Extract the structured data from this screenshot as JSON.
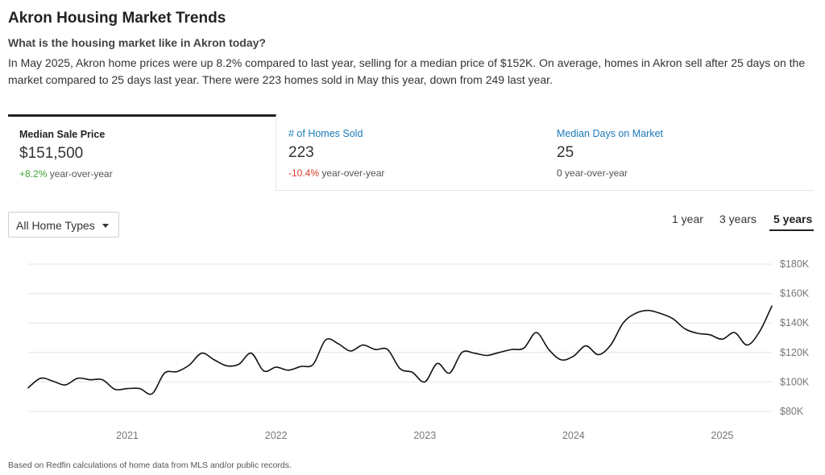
{
  "header": {
    "title": "Akron Housing Market Trends",
    "subtitle": "What is the housing market like in Akron today?",
    "description": "In May 2025, Akron home prices were up 8.2% compared to last year, selling for a median price of $152K. On average, homes in Akron sell after 25 days on the market compared to 25 days last year. There were 223 homes sold in May this year, down from 249 last year."
  },
  "tabs": [
    {
      "label": "Median Sale Price",
      "value": "$151,500",
      "change": "+8.2%",
      "change_suffix": " year-over-year",
      "active": true
    },
    {
      "label": "# of Homes Sold",
      "value": "223",
      "change": "-10.4%",
      "change_suffix": " year-over-year",
      "active": false
    },
    {
      "label": "Median Days on Market",
      "value": "25",
      "change": "0",
      "change_suffix": " year-over-year",
      "active": false
    }
  ],
  "filter": {
    "selected": "All Home Types"
  },
  "ranges": [
    {
      "label": "1 year",
      "active": false
    },
    {
      "label": "3 years",
      "active": false
    },
    {
      "label": "5 years",
      "active": true
    }
  ],
  "colors": {
    "positive": "#3fa535",
    "negative": "#d93a26",
    "tab_link": "#1a7ab8",
    "line": "#111111"
  },
  "chart_data": {
    "type": "line",
    "title": "",
    "xlabel": "",
    "ylabel": "",
    "ylim": [
      80000,
      180000
    ],
    "y_ticks": [
      80000,
      100000,
      120000,
      140000,
      160000,
      180000
    ],
    "y_tick_labels": [
      "$80K",
      "$100K",
      "$120K",
      "$140K",
      "$160K",
      "$180K"
    ],
    "x_tick_labels": [
      "2021",
      "2022",
      "2023",
      "2024",
      "2025"
    ],
    "x_tick_dates": [
      "2021-01",
      "2022-01",
      "2023-01",
      "2024-01",
      "2025-01"
    ],
    "x_range": [
      "2020-05",
      "2025-05"
    ],
    "grid": true,
    "series": [
      {
        "x": [
          "2020-05",
          "2020-06",
          "2020-07",
          "2020-08",
          "2020-09",
          "2020-10",
          "2020-11",
          "2020-12",
          "2021-01",
          "2021-02",
          "2021-03",
          "2021-04",
          "2021-05",
          "2021-06",
          "2021-07",
          "2021-08",
          "2021-09",
          "2021-10",
          "2021-11",
          "2021-12",
          "2022-01",
          "2022-02",
          "2022-03",
          "2022-04",
          "2022-05",
          "2022-06",
          "2022-07",
          "2022-08",
          "2022-09",
          "2022-10",
          "2022-11",
          "2022-12",
          "2023-01",
          "2023-02",
          "2023-03",
          "2023-04",
          "2023-05",
          "2023-06",
          "2023-07",
          "2023-08",
          "2023-09",
          "2023-10",
          "2023-11",
          "2023-12",
          "2024-01",
          "2024-02",
          "2024-03",
          "2024-04",
          "2024-05",
          "2024-06",
          "2024-07",
          "2024-08",
          "2024-09",
          "2024-10",
          "2024-11",
          "2024-12",
          "2025-01",
          "2025-02",
          "2025-03",
          "2025-04",
          "2025-05"
        ],
        "values": [
          96000,
          102500,
          100500,
          98000,
          102500,
          101500,
          101500,
          95000,
          95500,
          95500,
          92000,
          106000,
          107000,
          111500,
          119500,
          115000,
          111000,
          112000,
          119500,
          107500,
          110000,
          108000,
          110500,
          112000,
          128500,
          126000,
          121000,
          125000,
          122000,
          122000,
          109000,
          106500,
          100000,
          112500,
          106000,
          120000,
          119500,
          118000,
          120000,
          122000,
          123000,
          133500,
          122000,
          115000,
          117500,
          124500,
          118500,
          125000,
          140000,
          146500,
          148500,
          146500,
          143000,
          136000,
          133000,
          132000,
          129000,
          133500,
          125000,
          134000,
          151500
        ]
      }
    ]
  },
  "footnote": "Based on Redfin calculations of home data from MLS and/or public records."
}
